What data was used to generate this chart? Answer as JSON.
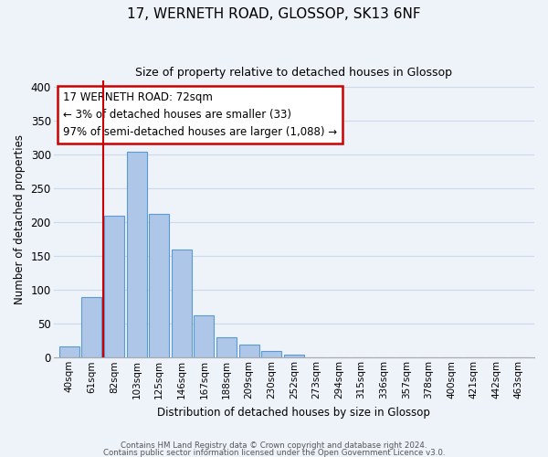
{
  "title1": "17, WERNETH ROAD, GLOSSOP, SK13 6NF",
  "title2": "Size of property relative to detached houses in Glossop",
  "xlabel": "Distribution of detached houses by size in Glossop",
  "ylabel": "Number of detached properties",
  "bar_labels": [
    "40sqm",
    "61sqm",
    "82sqm",
    "103sqm",
    "125sqm",
    "146sqm",
    "167sqm",
    "188sqm",
    "209sqm",
    "230sqm",
    "252sqm",
    "273sqm",
    "294sqm",
    "315sqm",
    "336sqm",
    "357sqm",
    "378sqm",
    "400sqm",
    "421sqm",
    "442sqm",
    "463sqm"
  ],
  "bar_values": [
    17,
    90,
    210,
    305,
    212,
    160,
    63,
    30,
    19,
    10,
    4,
    1,
    1,
    0,
    0,
    0,
    1,
    0,
    0,
    0,
    1
  ],
  "bar_color": "#aec6e8",
  "bar_edge_color": "#5b9bd5",
  "property_line_x": 1.5,
  "annotation_title": "17 WERNETH ROAD: 72sqm",
  "annotation_line1": "← 3% of detached houses are smaller (33)",
  "annotation_line2": "97% of semi-detached houses are larger (1,088) →",
  "annotation_box_color": "#ffffff",
  "annotation_box_edge": "#cc0000",
  "red_line_color": "#cc0000",
  "grid_color": "#cdd8eb",
  "background_color": "#eef2f9",
  "ylim": [
    0,
    410
  ],
  "yticks": [
    0,
    50,
    100,
    150,
    200,
    250,
    300,
    350,
    400
  ],
  "footer1": "Contains HM Land Registry data © Crown copyright and database right 2024.",
  "footer2": "Contains public sector information licensed under the Open Government Licence v3.0."
}
